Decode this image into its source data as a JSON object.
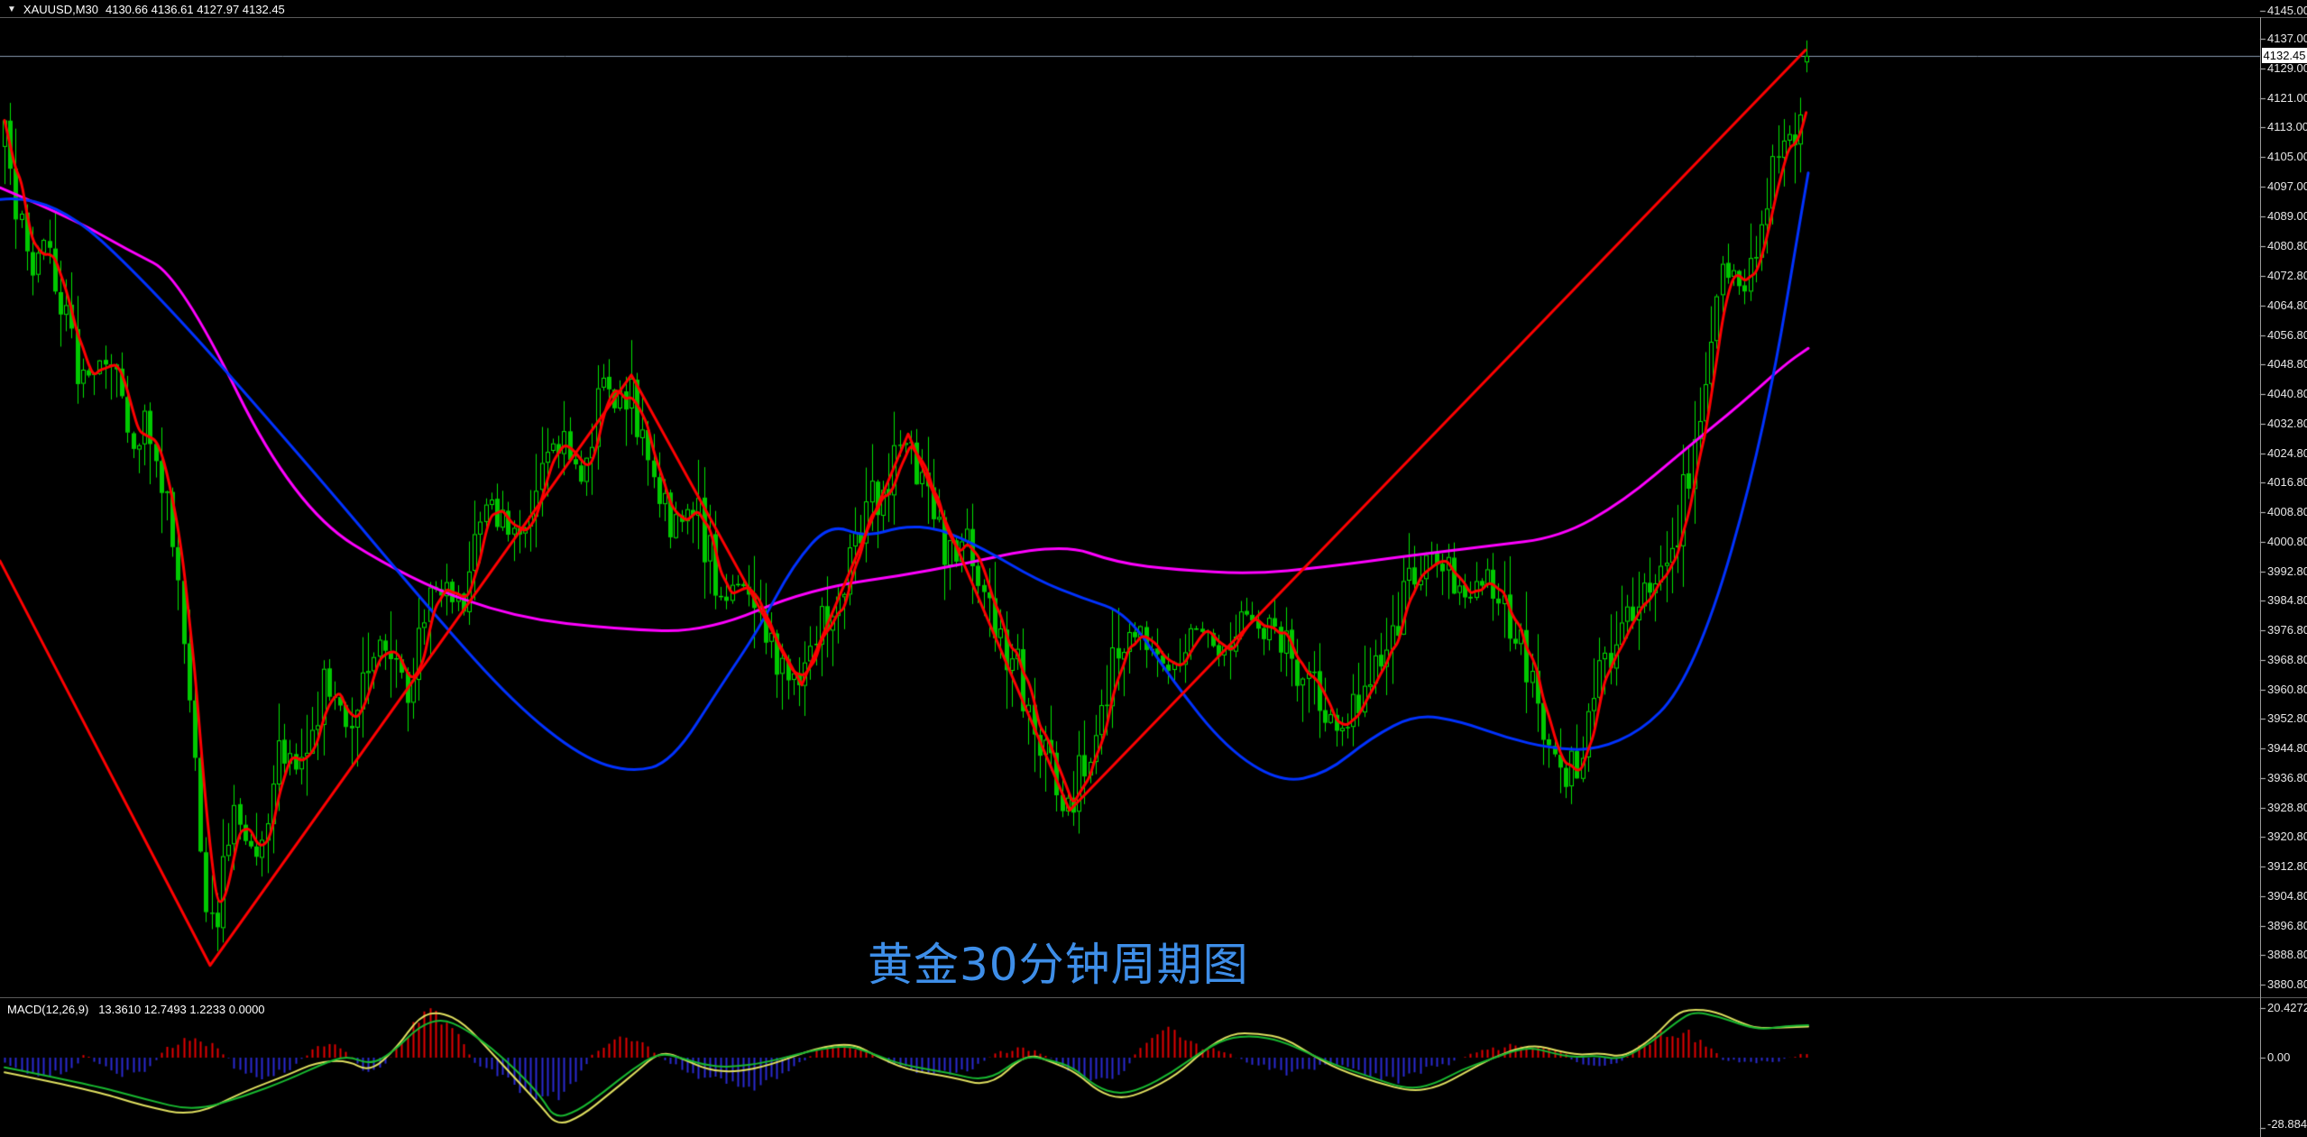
{
  "header": {
    "collapse_icon": "▼",
    "symbol": "XAUUSD,M30",
    "ohlc_text": "4130.66 4136.61 4127.97 4132.45",
    "open": "4130.66",
    "high": "4136.61",
    "low": "4127.97",
    "close": "4132.45"
  },
  "watermark": {
    "text": "黄金30分钟周期图",
    "color": "#3e8ee8"
  },
  "price_box": {
    "value": "4132.45",
    "bg": "#ffffff",
    "fg": "#000000"
  },
  "price_axis": {
    "labels": [
      "4145.00",
      "4137.00",
      "4129.00",
      "4121.00",
      "4113.00",
      "4105.00",
      "4097.00",
      "4089.00",
      "4080.80",
      "4072.80",
      "4064.80",
      "4056.80",
      "4048.80",
      "4040.80",
      "4032.80",
      "4024.80",
      "4016.80",
      "4008.80",
      "4000.80",
      "3992.80",
      "3984.80",
      "3976.80",
      "3968.80",
      "3960.80",
      "3952.80",
      "3944.80",
      "3936.80",
      "3928.80",
      "3920.80",
      "3912.80",
      "3904.80",
      "3896.80",
      "3888.80",
      "3880.80"
    ]
  },
  "macd_panel": {
    "label_name": "MACD(12,26,9)",
    "label_values": "13.3610 12.7493 1.2233 0.0000",
    "macd_value": 13.361,
    "signal_value": 12.7493,
    "hist_value": 1.2233,
    "osma_value": 0.0,
    "axis_labels": [
      "20.4272",
      "0.00",
      "-28.8844"
    ]
  },
  "chart_data": {
    "type": "candlestick",
    "symbol": "XAUUSD",
    "timeframe": "M30",
    "current_bar": {
      "open": 4130.66,
      "high": 4136.61,
      "low": 4127.97,
      "close": 4132.45
    },
    "price_axis_range": {
      "top_label": 4145.0,
      "bottom_label": 3880.8,
      "label_step": 8.0
    },
    "bid_price": 4132.45,
    "grid": false,
    "price_path_keypoints": [
      [
        5,
        4108.5
      ],
      [
        30,
        4074.3
      ],
      [
        50,
        4084.1
      ],
      [
        90,
        4045.0
      ],
      [
        120,
        4052.3
      ],
      [
        150,
        4025.4
      ],
      [
        165,
        4035.2
      ],
      [
        185,
        4010.7
      ],
      [
        210,
        3964.3
      ],
      [
        232,
        3889.8
      ],
      [
        260,
        3927.7
      ],
      [
        285,
        3915.5
      ],
      [
        310,
        3947.3
      ],
      [
        330,
        3937.5
      ],
      [
        360,
        3961.9
      ],
      [
        385,
        3952.1
      ],
      [
        420,
        3976.6
      ],
      [
        450,
        3961.9
      ],
      [
        480,
        3991.2
      ],
      [
        510,
        3981.4
      ],
      [
        540,
        4010.7
      ],
      [
        570,
        4001.0
      ],
      [
        610,
        4030.3
      ],
      [
        640,
        4020.5
      ],
      [
        670,
        4040.1
      ],
      [
        698,
        4043.0
      ],
      [
        720,
        4020.5
      ],
      [
        745,
        4005.9
      ],
      [
        770,
        4010.7
      ],
      [
        800,
        3986.3
      ],
      [
        830,
        3991.2
      ],
      [
        860,
        3969.2
      ],
      [
        889,
        3961.4
      ],
      [
        910,
        3976.6
      ],
      [
        930,
        3988.7
      ],
      [
        955,
        4005.9
      ],
      [
        980,
        4015.7
      ],
      [
        1007,
        4026.6
      ],
      [
        1030,
        4010.7
      ],
      [
        1055,
        3996.1
      ],
      [
        1075,
        4001.0
      ],
      [
        1100,
        3979.0
      ],
      [
        1125,
        3966.8
      ],
      [
        1150,
        3952.1
      ],
      [
        1170,
        3935.0
      ],
      [
        1186,
        3929.4
      ],
      [
        1210,
        3944.8
      ],
      [
        1240,
        3971.7
      ],
      [
        1265,
        3976.6
      ],
      [
        1290,
        3966.8
      ],
      [
        1320,
        3976.6
      ],
      [
        1350,
        3971.7
      ],
      [
        1380,
        3981.4
      ],
      [
        1410,
        3976.6
      ],
      [
        1445,
        3966.8
      ],
      [
        1480,
        3947.3
      ],
      [
        1510,
        3957.0
      ],
      [
        1535,
        3976.6
      ],
      [
        1560,
        3986.3
      ],
      [
        1590,
        3996.1
      ],
      [
        1620,
        3986.3
      ],
      [
        1650,
        3991.2
      ],
      [
        1680,
        3976.6
      ],
      [
        1705,
        3957.0
      ],
      [
        1735,
        3932.6
      ],
      [
        1760,
        3952.1
      ],
      [
        1790,
        3976.6
      ],
      [
        1820,
        3988.7
      ],
      [
        1852,
        3996.1
      ],
      [
        1880,
        4030.3
      ],
      [
        1900,
        4066.9
      ],
      [
        1925,
        4076.7
      ],
      [
        1935,
        4066.9
      ],
      [
        1955,
        4093.7
      ],
      [
        1975,
        4105.9
      ],
      [
        1988,
        4108.4
      ],
      [
        2002,
        4132.4
      ]
    ],
    "zigzag_vertices": [
      [
        0,
        3995.6
      ],
      [
        233,
        3886.0
      ],
      [
        700,
        4046.0
      ],
      [
        889,
        3962.0
      ],
      [
        1007,
        4030.0
      ],
      [
        1186,
        3928.0
      ],
      [
        2002,
        4134.0
      ]
    ],
    "ma_blue_keypoints": [
      [
        0,
        4093.5
      ],
      [
        55,
        4095.2
      ],
      [
        170,
        4069.4
      ],
      [
        350,
        4019.3
      ],
      [
        480,
        3981.5
      ],
      [
        570,
        3957.0
      ],
      [
        645,
        3942.4
      ],
      [
        700,
        3938.2
      ],
      [
        745,
        3941.1
      ],
      [
        800,
        3962.0
      ],
      [
        840,
        3976.6
      ],
      [
        880,
        3994.8
      ],
      [
        920,
        4005.7
      ],
      [
        960,
        4002.0
      ],
      [
        1000,
        4005.0
      ],
      [
        1040,
        4004.5
      ],
      [
        1090,
        3999.0
      ],
      [
        1150,
        3990.4
      ],
      [
        1200,
        3985.5
      ],
      [
        1250,
        3981.5
      ],
      [
        1300,
        3963.1
      ],
      [
        1360,
        3944.8
      ],
      [
        1420,
        3935.5
      ],
      [
        1470,
        3937.9
      ],
      [
        1520,
        3947.7
      ],
      [
        1570,
        3954.1
      ],
      [
        1620,
        3952.1
      ],
      [
        1670,
        3947.7
      ],
      [
        1720,
        3944.8
      ],
      [
        1770,
        3944.3
      ],
      [
        1820,
        3949.6
      ],
      [
        1860,
        3959.4
      ],
      [
        1900,
        3981.5
      ],
      [
        1940,
        4015.7
      ],
      [
        1970,
        4049.7
      ],
      [
        1990,
        4079.4
      ],
      [
        2005,
        4100.7
      ]
    ],
    "ma_magenta_keypoints": [
      [
        0,
        4096.7
      ],
      [
        80,
        4088.4
      ],
      [
        140,
        4080.1
      ],
      [
        200,
        4072.6
      ],
      [
        326,
        4010.0
      ],
      [
        457,
        3990.2
      ],
      [
        571,
        3980.2
      ],
      [
        685,
        3977.1
      ],
      [
        783,
        3976.3
      ],
      [
        897,
        3988.0
      ],
      [
        1030,
        3992.7
      ],
      [
        1175,
        4000.5
      ],
      [
        1240,
        3995.0
      ],
      [
        1305,
        3993.2
      ],
      [
        1387,
        3992.0
      ],
      [
        1468,
        3993.9
      ],
      [
        1566,
        3997.1
      ],
      [
        1650,
        3999.6
      ],
      [
        1730,
        4002.0
      ],
      [
        1800,
        4011.7
      ],
      [
        1870,
        4026.1
      ],
      [
        1930,
        4038.1
      ],
      [
        1980,
        4049.0
      ],
      [
        2005,
        4053.2
      ]
    ],
    "macd": {
      "params": "12,26,9",
      "axis": {
        "top_value": 20.4272,
        "zero": 0.0,
        "bottom_value": -28.8844
      },
      "macd_line_keypoints": [
        [
          5,
          -4
        ],
        [
          100,
          -11
        ],
        [
          160,
          -17
        ],
        [
          215,
          -22
        ],
        [
          270,
          -16
        ],
        [
          320,
          -9
        ],
        [
          355,
          -3
        ],
        [
          385,
          1
        ],
        [
          410,
          -3
        ],
        [
          435,
          2
        ],
        [
          465,
          13
        ],
        [
          490,
          16
        ],
        [
          515,
          12
        ],
        [
          545,
          4
        ],
        [
          575,
          -6
        ],
        [
          600,
          -16
        ],
        [
          615,
          -25
        ],
        [
          640,
          -22
        ],
        [
          670,
          -14
        ],
        [
          700,
          -5
        ],
        [
          730,
          2
        ],
        [
          755,
          0
        ],
        [
          780,
          -3
        ],
        [
          810,
          -4
        ],
        [
          850,
          -2
        ],
        [
          900,
          3
        ],
        [
          940,
          5
        ],
        [
          965,
          2
        ],
        [
          1000,
          -3
        ],
        [
          1050,
          -6
        ],
        [
          1095,
          -10
        ],
        [
          1135,
          1
        ],
        [
          1165,
          -1
        ],
        [
          1190,
          -4
        ],
        [
          1215,
          -12
        ],
        [
          1240,
          -15
        ],
        [
          1265,
          -13
        ],
        [
          1300,
          -6
        ],
        [
          1330,
          2
        ],
        [
          1360,
          8
        ],
        [
          1390,
          9
        ],
        [
          1420,
          7
        ],
        [
          1450,
          2
        ],
        [
          1480,
          -3
        ],
        [
          1520,
          -8
        ],
        [
          1560,
          -13
        ],
        [
          1590,
          -11
        ],
        [
          1620,
          -5
        ],
        [
          1650,
          -1
        ],
        [
          1680,
          3
        ],
        [
          1700,
          4
        ],
        [
          1720,
          2
        ],
        [
          1745,
          0
        ],
        [
          1770,
          1
        ],
        [
          1797,
          -1
        ],
        [
          1830,
          6
        ],
        [
          1860,
          15
        ],
        [
          1878,
          19
        ],
        [
          1905,
          17
        ],
        [
          1935,
          13
        ],
        [
          1955,
          11.6
        ],
        [
          1980,
          13
        ],
        [
          2005,
          13.36
        ]
      ],
      "signal_line_keypoints": [
        [
          5,
          -6
        ],
        [
          100,
          -13
        ],
        [
          160,
          -20
        ],
        [
          215,
          -24
        ],
        [
          270,
          -14
        ],
        [
          320,
          -7
        ],
        [
          350,
          -2
        ],
        [
          385,
          -1
        ],
        [
          410,
          -6
        ],
        [
          440,
          4
        ],
        [
          465,
          17
        ],
        [
          488,
          19
        ],
        [
          515,
          14
        ],
        [
          545,
          2
        ],
        [
          575,
          -10
        ],
        [
          600,
          -20
        ],
        [
          618,
          -28
        ],
        [
          645,
          -24
        ],
        [
          675,
          -15
        ],
        [
          705,
          -6
        ],
        [
          733,
          3
        ],
        [
          760,
          -1
        ],
        [
          785,
          -5
        ],
        [
          815,
          -6
        ],
        [
          855,
          -3
        ],
        [
          905,
          4
        ],
        [
          945,
          6
        ],
        [
          970,
          1
        ],
        [
          1005,
          -5
        ],
        [
          1055,
          -8
        ],
        [
          1098,
          -12
        ],
        [
          1138,
          2
        ],
        [
          1168,
          -2
        ],
        [
          1193,
          -6
        ],
        [
          1218,
          -14
        ],
        [
          1243,
          -17
        ],
        [
          1270,
          -14
        ],
        [
          1305,
          -7
        ],
        [
          1335,
          3
        ],
        [
          1365,
          10
        ],
        [
          1395,
          10
        ],
        [
          1425,
          8
        ],
        [
          1455,
          1
        ],
        [
          1485,
          -5
        ],
        [
          1525,
          -10
        ],
        [
          1565,
          -14
        ],
        [
          1595,
          -12
        ],
        [
          1625,
          -6
        ],
        [
          1655,
          0
        ],
        [
          1685,
          4
        ],
        [
          1705,
          5
        ],
        [
          1725,
          3
        ],
        [
          1750,
          1
        ],
        [
          1775,
          2
        ],
        [
          1800,
          0
        ],
        [
          1833,
          8
        ],
        [
          1858,
          18
        ],
        [
          1875,
          20
        ],
        [
          1902,
          19
        ],
        [
          1932,
          14
        ],
        [
          1950,
          12
        ],
        [
          1978,
          12.5
        ],
        [
          2005,
          12.75
        ]
      ],
      "histogram_envelope_keypoints": [
        [
          5,
          -3
        ],
        [
          40,
          -7
        ],
        [
          80,
          -5
        ],
        [
          95,
          2
        ],
        [
          105,
          -2
        ],
        [
          130,
          -7
        ],
        [
          165,
          -4
        ],
        [
          185,
          4
        ],
        [
          215,
          8
        ],
        [
          240,
          5
        ],
        [
          260,
          -4
        ],
        [
          290,
          -9
        ],
        [
          320,
          -5
        ],
        [
          345,
          3
        ],
        [
          365,
          6
        ],
        [
          385,
          2
        ],
        [
          400,
          -4
        ],
        [
          420,
          -6
        ],
        [
          440,
          4
        ],
        [
          460,
          14
        ],
        [
          480,
          18
        ],
        [
          505,
          10
        ],
        [
          525,
          -2
        ],
        [
          555,
          -8
        ],
        [
          585,
          -13
        ],
        [
          610,
          -16
        ],
        [
          635,
          -12
        ],
        [
          660,
          3
        ],
        [
          690,
          8
        ],
        [
          715,
          5
        ],
        [
          740,
          -2
        ],
        [
          770,
          -7
        ],
        [
          800,
          -10
        ],
        [
          830,
          -12
        ],
        [
          860,
          -8
        ],
        [
          885,
          -3
        ],
        [
          905,
          3
        ],
        [
          935,
          6
        ],
        [
          960,
          4
        ],
        [
          985,
          -2
        ],
        [
          1015,
          -5
        ],
        [
          1045,
          -6
        ],
        [
          1075,
          -5
        ],
        [
          1105,
          2
        ],
        [
          1130,
          4
        ],
        [
          1155,
          2
        ],
        [
          1180,
          -4
        ],
        [
          1205,
          -8
        ],
        [
          1225,
          -9
        ],
        [
          1245,
          -6
        ],
        [
          1262,
          3
        ],
        [
          1285,
          11
        ],
        [
          1310,
          9
        ],
        [
          1335,
          4
        ],
        [
          1360,
          2
        ],
        [
          1385,
          -2
        ],
        [
          1405,
          -4
        ],
        [
          1430,
          -6
        ],
        [
          1455,
          -4
        ],
        [
          1475,
          -2
        ],
        [
          1495,
          -4
        ],
        [
          1520,
          -7
        ],
        [
          1545,
          -9
        ],
        [
          1570,
          -7
        ],
        [
          1590,
          -4
        ],
        [
          1610,
          -2
        ],
        [
          1630,
          2
        ],
        [
          1655,
          4
        ],
        [
          1680,
          5
        ],
        [
          1705,
          4
        ],
        [
          1730,
          2
        ],
        [
          1750,
          -2
        ],
        [
          1775,
          -3
        ],
        [
          1795,
          -2
        ],
        [
          1815,
          4
        ],
        [
          1840,
          9
        ],
        [
          1865,
          11
        ],
        [
          1890,
          6
        ],
        [
          1910,
          -1
        ],
        [
          1930,
          -2
        ],
        [
          1950,
          -2
        ],
        [
          1970,
          -1.5
        ],
        [
          1985,
          0.5
        ],
        [
          2005,
          1.2
        ]
      ]
    },
    "colors": {
      "background": "#000000",
      "candle": "#00e600",
      "candle_bear_fill": "#00c800",
      "zigzag": "#ff0000",
      "ma_fast_red": "#ff0000",
      "ma_blue": "#0032ff",
      "ma_magenta": "#ff00ff",
      "bid_line": "#8a9bb0",
      "macd_line_green": "#18b830",
      "signal_line_yellow": "#e0e060",
      "hist_positive_red": "#e00000",
      "hist_negative_blue": "#2a2ad0",
      "axis_text": "#e6e6e6"
    }
  }
}
